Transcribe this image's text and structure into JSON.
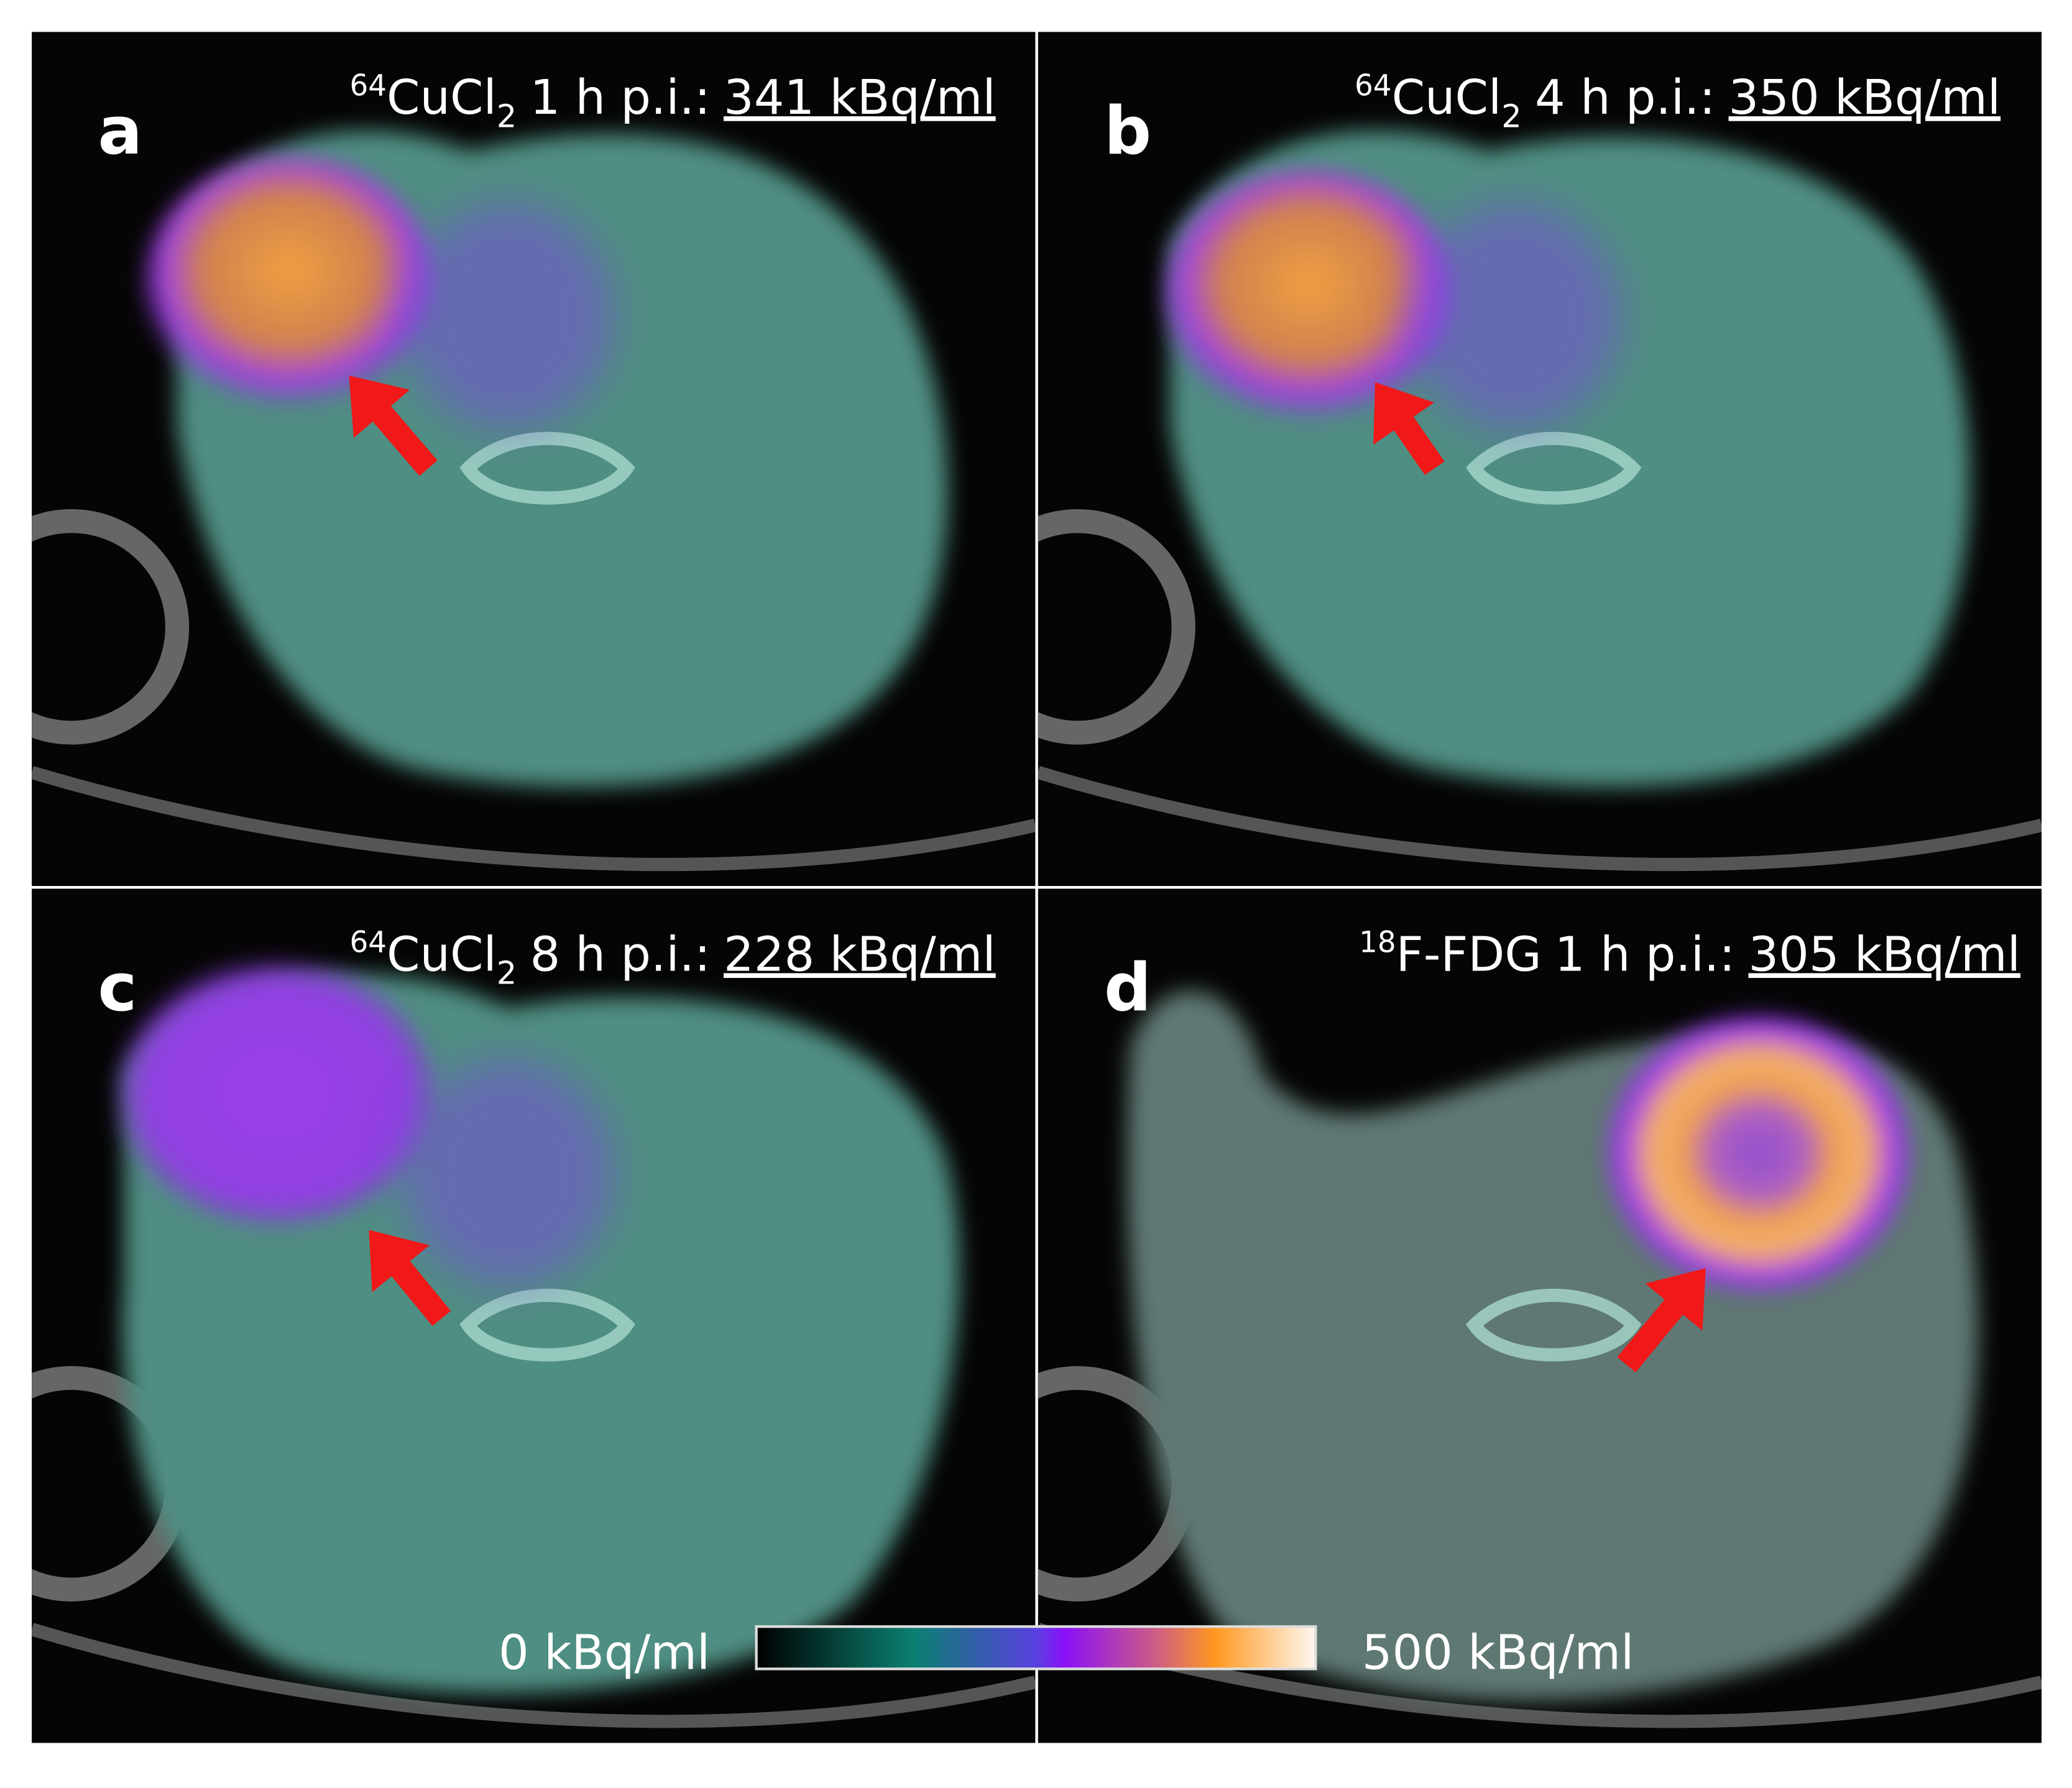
{
  "panels": [
    {
      "letter": "a",
      "isotope": "64",
      "compound": "CuCl",
      "subscript": "2",
      "time": "1 h p.i.:",
      "value": "341 kBq/ml"
    },
    {
      "letter": "b",
      "isotope": "64",
      "compound": "CuCl",
      "subscript": "2",
      "time": "4 h p.i.:",
      "value": "350 kBq/ml"
    },
    {
      "letter": "c",
      "isotope": "64",
      "compound": "CuCl",
      "subscript": "2",
      "time": "8 h p.i.:",
      "value": "228 kBq/ml"
    },
    {
      "letter": "d",
      "isotope": "18",
      "compound": "F-FDG",
      "time": "1 h p.i.:",
      "value": "305 kBq/ml"
    }
  ],
  "colorbar": {
    "min_label": "0 kBq/ml",
    "max_label": "500 kBq/ml"
  }
}
